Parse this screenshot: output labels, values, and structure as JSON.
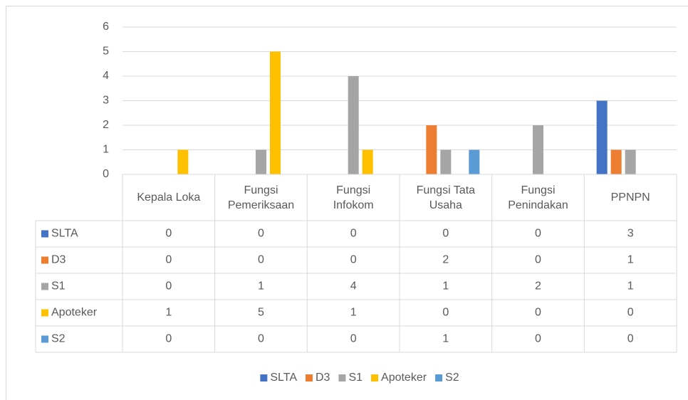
{
  "chart_data": {
    "type": "bar",
    "categories": [
      "Kepala Loka",
      "Fungsi Pemeriksaan",
      "Fungsi Infokom",
      "Fungsi Tata Usaha",
      "Fungsi Penindakan",
      "PPNPN"
    ],
    "series": [
      {
        "name": "SLTA",
        "color": "#4472c4",
        "values": [
          0,
          0,
          0,
          0,
          0,
          3
        ]
      },
      {
        "name": "D3",
        "color": "#ed7d31",
        "values": [
          0,
          0,
          0,
          2,
          0,
          1
        ]
      },
      {
        "name": "S1",
        "color": "#a5a5a5",
        "values": [
          0,
          1,
          4,
          1,
          2,
          1
        ]
      },
      {
        "name": "Apoteker",
        "color": "#ffc000",
        "values": [
          1,
          5,
          1,
          0,
          0,
          0
        ]
      },
      {
        "name": "S2",
        "color": "#5b9bd5",
        "values": [
          0,
          0,
          0,
          1,
          0,
          0
        ]
      }
    ],
    "ylim": [
      0,
      6
    ],
    "yticks": [
      0,
      1,
      2,
      3,
      4,
      5,
      6
    ],
    "grid": true,
    "legend": "bottom",
    "data_table": true
  }
}
